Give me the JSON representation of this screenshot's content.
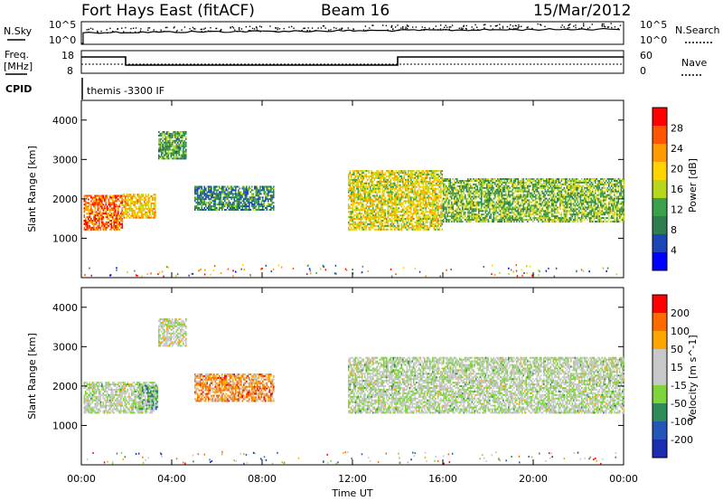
{
  "header": {
    "station": "Fort Hays East (fitACF)",
    "beam": "Beam 16",
    "date": "15/Mar/2012"
  },
  "noise_panel": {
    "left_label": "N.Sky",
    "right_label": "N.Search",
    "ticks": [
      "10^5",
      "10^0"
    ]
  },
  "freq_panel": {
    "left_label": "Freq.",
    "left_unit": "[MHz]",
    "left_ticks": [
      "18",
      "8"
    ],
    "right_label": "Nave",
    "right_ticks": [
      "60",
      "0"
    ]
  },
  "cpid": {
    "label": "CPID",
    "program": "themis -3300 IF"
  },
  "colors": {
    "power_scale": [
      "#0000ff",
      "#1c46b4",
      "#2e7d4f",
      "#3aa04a",
      "#b8d61c",
      "#ffd400",
      "#ff9a00",
      "#ff5500",
      "#ff0000"
    ],
    "velocity_scale": [
      "#1b2eb0",
      "#2456b8",
      "#2e8b57",
      "#7fd43a",
      "#c8c8c8",
      "#c8c8c8",
      "#ffa500",
      "#ff6a00",
      "#ff0000"
    ]
  },
  "chart_data": [
    {
      "type": "heatmap",
      "name": "power",
      "ylabel": "Slant Range [km]",
      "yticks": [
        "4000",
        "3000",
        "2000",
        "1000"
      ],
      "ylim": [
        0,
        4500
      ],
      "colorbar_label": "Power [dB]",
      "colorbar_ticks": [
        "28",
        "24",
        "20",
        "16",
        "12",
        "8",
        "4"
      ],
      "colorbar_range": [
        0,
        32
      ],
      "echo_bands": [
        {
          "t0": 0.1,
          "t1": 1.8,
          "r0": 1200,
          "r1": 2100,
          "v": 26
        },
        {
          "t0": 1.8,
          "t1": 3.3,
          "r0": 1500,
          "r1": 2100,
          "v": 20
        },
        {
          "t0": 3.4,
          "t1": 4.6,
          "r0": 3000,
          "r1": 3700,
          "v": 12
        },
        {
          "t0": 5.0,
          "t1": 8.5,
          "r0": 1700,
          "r1": 2300,
          "v": 10
        },
        {
          "t0": 11.8,
          "t1": 16.0,
          "r0": 1200,
          "r1": 2700,
          "v": 18
        },
        {
          "t0": 16.0,
          "t1": 24.0,
          "r0": 1400,
          "r1": 2500,
          "v": 14
        }
      ]
    },
    {
      "type": "heatmap",
      "name": "velocity",
      "ylabel": "Slant Range [km]",
      "yticks": [
        "4000",
        "3000",
        "2000",
        "1000"
      ],
      "ylim": [
        0,
        4500
      ],
      "colorbar_label": "Velocity [m s^-1]",
      "colorbar_ticks": [
        "200",
        "100",
        "50",
        "15",
        "-15",
        "-50",
        "-100",
        "-200"
      ],
      "colorbar_range": [
        -250,
        250
      ],
      "echo_bands": [
        {
          "t0": 0.1,
          "t1": 3.3,
          "r0": 1300,
          "r1": 2100,
          "v": 0
        },
        {
          "t0": 2.5,
          "t1": 3.4,
          "r0": 1400,
          "r1": 2000,
          "v": -60
        },
        {
          "t0": 3.4,
          "t1": 4.6,
          "r0": 3000,
          "r1": 3700,
          "v": 20
        },
        {
          "t0": 5.0,
          "t1": 8.5,
          "r0": 1600,
          "r1": 2300,
          "v": 120
        },
        {
          "t0": 11.8,
          "t1": 24.0,
          "r0": 1300,
          "r1": 2700,
          "v": 0
        }
      ]
    }
  ],
  "xaxis": {
    "label": "Time UT",
    "ticks": [
      "00:00",
      "04:00",
      "08:00",
      "12:00",
      "16:00",
      "20:00",
      "00:00"
    ],
    "range_hours": [
      0,
      24
    ]
  }
}
